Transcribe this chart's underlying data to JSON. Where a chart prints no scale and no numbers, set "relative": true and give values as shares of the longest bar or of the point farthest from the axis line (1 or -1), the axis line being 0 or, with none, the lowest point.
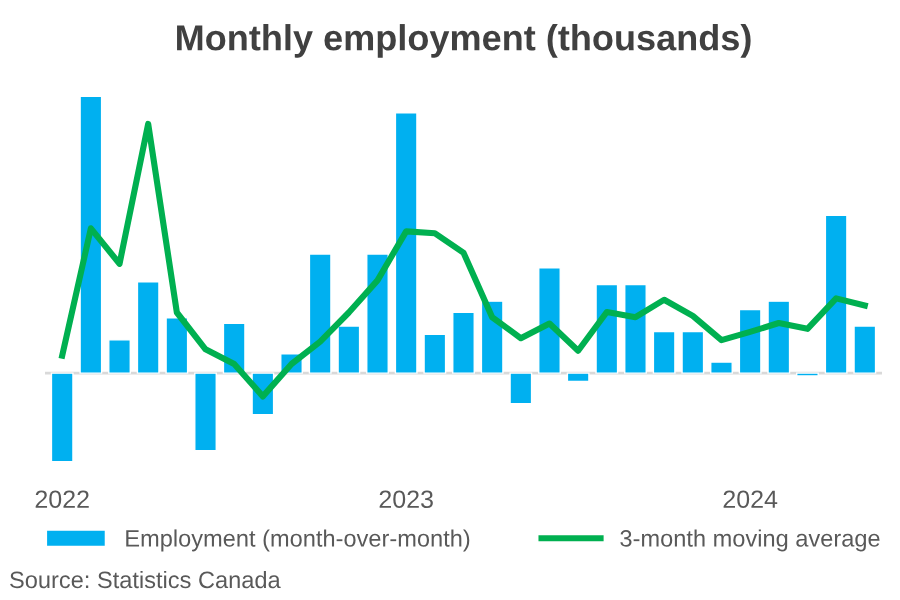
{
  "chart_data": {
    "type": "bar",
    "title": "Monthly employment (thousands)",
    "relative": true,
    "categories": [
      "2022",
      null,
      null,
      null,
      null,
      null,
      null,
      null,
      null,
      null,
      null,
      null,
      "2023",
      null,
      null,
      null,
      null,
      null,
      null,
      null,
      null,
      null,
      null,
      null,
      "2024",
      null,
      null,
      null,
      null
    ],
    "series": [
      {
        "name": "Employment (month-over-month)",
        "color": "#00b0f0",
        "values": [
          -0.32,
          1.0,
          0.12,
          0.33,
          0.2,
          -0.28,
          0.18,
          -0.15,
          0.07,
          0.43,
          0.17,
          0.43,
          0.94,
          0.14,
          0.22,
          0.26,
          -0.11,
          0.38,
          -0.03,
          0.32,
          0.32,
          0.15,
          0.15,
          0.04,
          0.23,
          0.26,
          -0.01,
          0.57,
          0.17
        ]
      },
      {
        "name": "3-month moving average",
        "type": "line",
        "color": "#00b050",
        "values": [
          0.063,
          0.523,
          0.395,
          0.9,
          0.219,
          0.086,
          0.033,
          -0.084,
          0.033,
          0.114,
          0.219,
          0.335,
          0.512,
          0.505,
          0.435,
          0.202,
          0.126,
          0.179,
          0.081,
          0.221,
          0.202,
          0.265,
          0.207,
          0.119,
          0.149,
          0.181,
          0.16,
          0.27,
          0.244
        ]
      }
    ],
    "legend": "bottom",
    "annotations": [
      "Source: Statistics Canada"
    ]
  }
}
